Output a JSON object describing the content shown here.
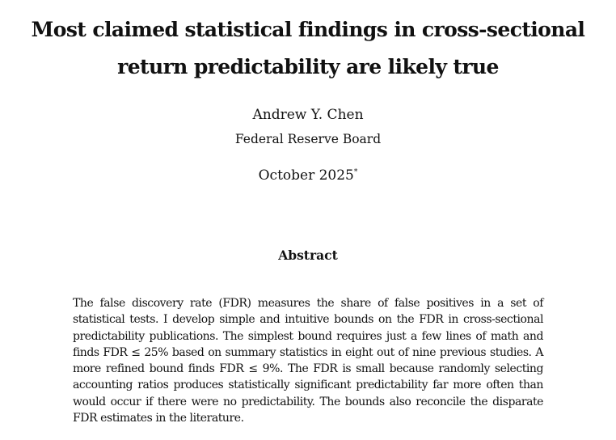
{
  "paper": {
    "title_line1": "Most claimed statistical findings in cross-sectional",
    "title_line2": "return predictability are likely true",
    "author": "Andrew Y. Chen",
    "affiliation": "Federal Reserve Board",
    "date": "October 2025",
    "date_footnote_mark": "*",
    "abstract_heading": "Abstract",
    "abstract_text": "The false discovery rate (FDR) measures the share of false positives in a set of statistical tests.  I develop simple and intuitive bounds on the FDR in cross-sectional predictability publications.  The simplest bound requires just a few lines of math and finds FDR ≤ 25% based on summary statistics in eight out of nine previous studies. A more refined bound finds FDR ≤ 9%. The FDR is small because randomly selecting accounting ratios produces statistically significant predictability far more often than would occur if there were no predictability.  The bounds also reconcile the disparate FDR estimates in the literature."
  }
}
